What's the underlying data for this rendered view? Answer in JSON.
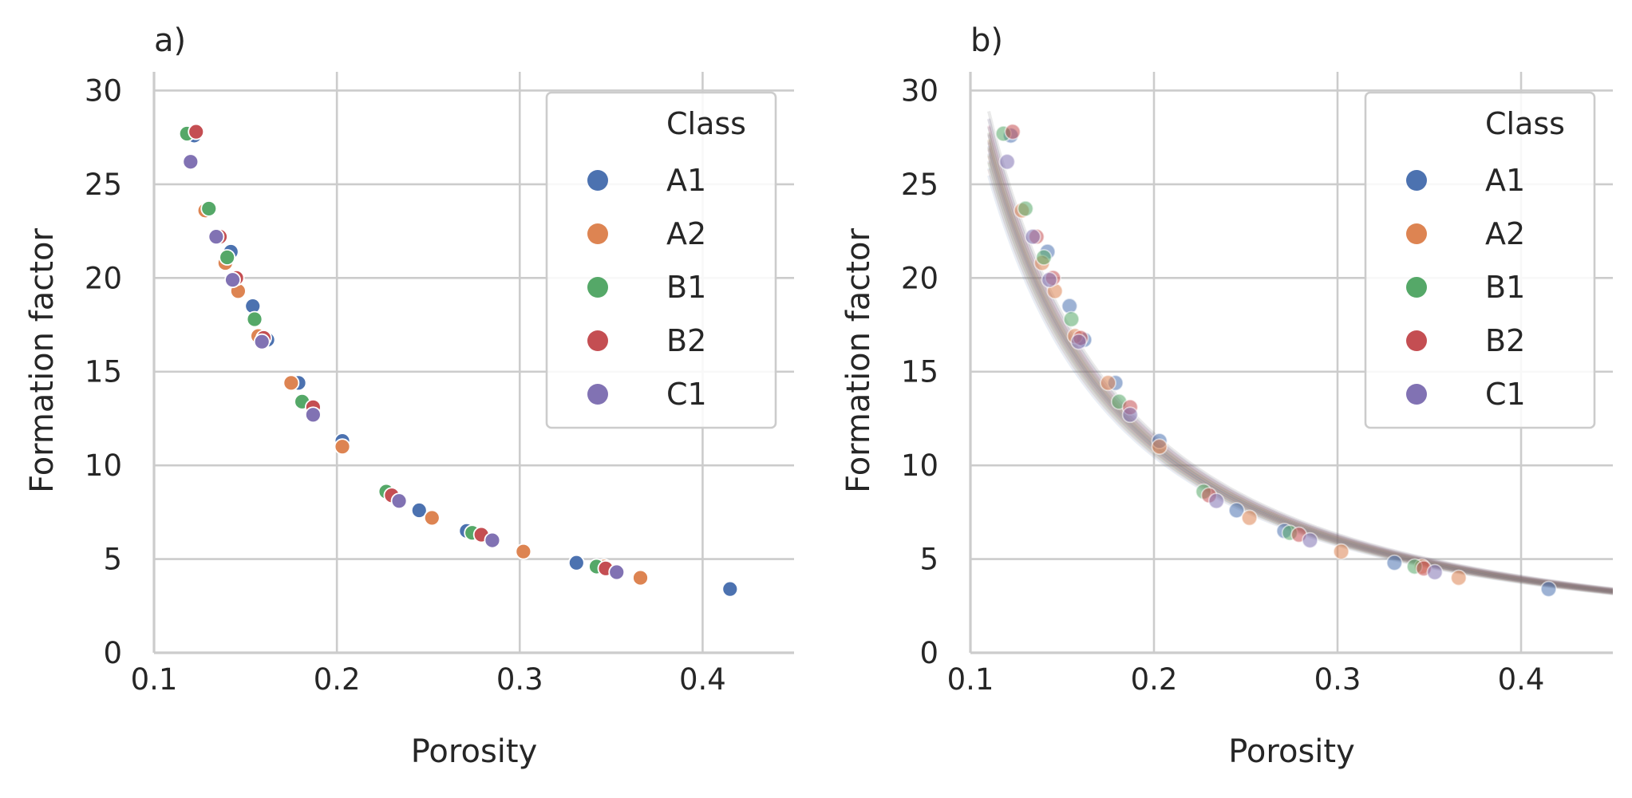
{
  "legend_title": "Class",
  "colors": {
    "A1": "#4c72b0",
    "A2": "#dd8452",
    "B1": "#55a868",
    "B2": "#c44e52",
    "C1": "#8172b3"
  },
  "chart_data": [
    {
      "type": "scatter",
      "panel_label": "a)",
      "xlabel": "Porosity",
      "ylabel": "Formation factor",
      "xlim": [
        0.1,
        0.45
      ],
      "ylim": [
        0,
        31
      ],
      "xticks": [
        "0.1",
        "0.2",
        "0.3",
        "0.4"
      ],
      "yticks": [
        "0",
        "5",
        "10",
        "15",
        "20",
        "25",
        "30"
      ],
      "grid": true,
      "legend_position": "top-right",
      "series": [
        {
          "name": "A1",
          "points": [
            [
              0.122,
              27.6
            ],
            [
              0.142,
              21.4
            ],
            [
              0.154,
              18.5
            ],
            [
              0.162,
              16.7
            ],
            [
              0.179,
              14.4
            ],
            [
              0.203,
              11.3
            ],
            [
              0.245,
              7.6
            ],
            [
              0.271,
              6.5
            ],
            [
              0.331,
              4.8
            ],
            [
              0.415,
              3.4
            ]
          ]
        },
        {
          "name": "A2",
          "points": [
            [
              0.128,
              23.6
            ],
            [
              0.139,
              20.8
            ],
            [
              0.146,
              19.3
            ],
            [
              0.157,
              16.9
            ],
            [
              0.175,
              14.4
            ],
            [
              0.203,
              11.0
            ],
            [
              0.252,
              7.2
            ],
            [
              0.302,
              5.4
            ],
            [
              0.346,
              4.6
            ],
            [
              0.366,
              4.0
            ]
          ]
        },
        {
          "name": "B1",
          "points": [
            [
              0.118,
              27.7
            ],
            [
              0.13,
              23.7
            ],
            [
              0.14,
              21.1
            ],
            [
              0.155,
              17.8
            ],
            [
              0.181,
              13.4
            ],
            [
              0.227,
              8.6
            ],
            [
              0.274,
              6.4
            ],
            [
              0.342,
              4.6
            ]
          ]
        },
        {
          "name": "B2",
          "points": [
            [
              0.123,
              27.8
            ],
            [
              0.136,
              22.2
            ],
            [
              0.145,
              20.0
            ],
            [
              0.16,
              16.8
            ],
            [
              0.187,
              13.1
            ],
            [
              0.23,
              8.4
            ],
            [
              0.279,
              6.3
            ],
            [
              0.347,
              4.5
            ]
          ]
        },
        {
          "name": "C1",
          "points": [
            [
              0.12,
              26.2
            ],
            [
              0.134,
              22.2
            ],
            [
              0.143,
              19.9
            ],
            [
              0.159,
              16.6
            ],
            [
              0.187,
              12.7
            ],
            [
              0.234,
              8.1
            ],
            [
              0.285,
              6.0
            ],
            [
              0.353,
              4.3
            ]
          ]
        }
      ]
    },
    {
      "type": "scatter",
      "panel_label": "b)",
      "xlabel": "Porosity",
      "ylabel": "Formation factor",
      "xlim": [
        0.1,
        0.45
      ],
      "ylim": [
        0,
        31
      ],
      "xticks": [
        "0.1",
        "0.2",
        "0.3",
        "0.4"
      ],
      "yticks": [
        "0",
        "5",
        "10",
        "15",
        "20",
        "25",
        "30"
      ],
      "grid": true,
      "legend_position": "top-right",
      "points_alpha": 0.55,
      "fit_curves": {
        "form": "F = a * porosity^(-m)",
        "a": 0.99,
        "m": 1.5,
        "variation": [
          0.97,
          0.985,
          1.0,
          1.015,
          1.03
        ]
      },
      "series": [
        {
          "name": "A1",
          "points": [
            [
              0.122,
              27.6
            ],
            [
              0.142,
              21.4
            ],
            [
              0.154,
              18.5
            ],
            [
              0.162,
              16.7
            ],
            [
              0.179,
              14.4
            ],
            [
              0.203,
              11.3
            ],
            [
              0.245,
              7.6
            ],
            [
              0.271,
              6.5
            ],
            [
              0.331,
              4.8
            ],
            [
              0.415,
              3.4
            ]
          ]
        },
        {
          "name": "A2",
          "points": [
            [
              0.128,
              23.6
            ],
            [
              0.139,
              20.8
            ],
            [
              0.146,
              19.3
            ],
            [
              0.157,
              16.9
            ],
            [
              0.175,
              14.4
            ],
            [
              0.203,
              11.0
            ],
            [
              0.252,
              7.2
            ],
            [
              0.302,
              5.4
            ],
            [
              0.346,
              4.6
            ],
            [
              0.366,
              4.0
            ]
          ]
        },
        {
          "name": "B1",
          "points": [
            [
              0.118,
              27.7
            ],
            [
              0.13,
              23.7
            ],
            [
              0.14,
              21.1
            ],
            [
              0.155,
              17.8
            ],
            [
              0.181,
              13.4
            ],
            [
              0.227,
              8.6
            ],
            [
              0.274,
              6.4
            ],
            [
              0.342,
              4.6
            ]
          ]
        },
        {
          "name": "B2",
          "points": [
            [
              0.123,
              27.8
            ],
            [
              0.136,
              22.2
            ],
            [
              0.145,
              20.0
            ],
            [
              0.16,
              16.8
            ],
            [
              0.187,
              13.1
            ],
            [
              0.23,
              8.4
            ],
            [
              0.279,
              6.3
            ],
            [
              0.347,
              4.5
            ]
          ]
        },
        {
          "name": "C1",
          "points": [
            [
              0.12,
              26.2
            ],
            [
              0.134,
              22.2
            ],
            [
              0.143,
              19.9
            ],
            [
              0.159,
              16.6
            ],
            [
              0.187,
              12.7
            ],
            [
              0.234,
              8.1
            ],
            [
              0.285,
              6.0
            ],
            [
              0.353,
              4.3
            ]
          ]
        }
      ]
    }
  ]
}
